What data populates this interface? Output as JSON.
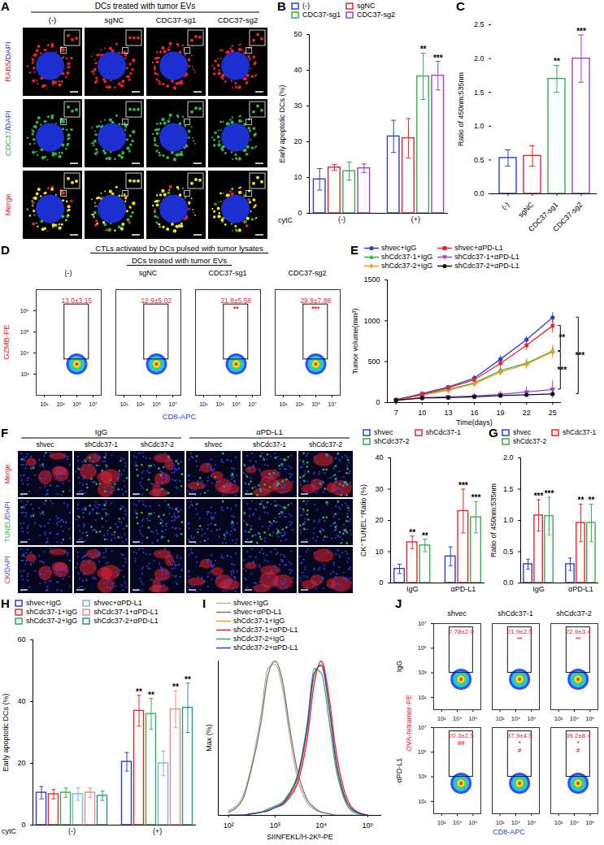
{
  "chart_data": [
    {
      "panel": "B",
      "type": "bar",
      "ylabel": "Early apoptotic DCs (%)",
      "xlabel": "cytC",
      "categories": [
        "(-)",
        "(+)"
      ],
      "ylim": [
        0,
        50
      ],
      "yticks": [
        0,
        10,
        20,
        30,
        40,
        50
      ],
      "legend": "top",
      "series": [
        {
          "name": "(-)",
          "color": "#2b3fd6",
          "values": [
            9.5,
            21.5
          ],
          "errors": [
            3,
            4.5
          ],
          "annotations": [
            null,
            null
          ]
        },
        {
          "name": "sgNC",
          "color": "#e8242b",
          "values": [
            12.8,
            21
          ],
          "errors": [
            0.8,
            5.5
          ],
          "annotations": [
            null,
            null
          ]
        },
        {
          "name": "CDC37-sg1",
          "color": "#2fb34a",
          "values": [
            11.8,
            38.3
          ],
          "errors": [
            2.5,
            6.5
          ],
          "annotations": [
            null,
            "**"
          ]
        },
        {
          "name": "CDC37-sg2",
          "color": "#9b3fd6",
          "values": [
            12.6,
            38.5
          ],
          "errors": [
            1.2,
            4
          ],
          "annotations": [
            null,
            "***"
          ]
        }
      ]
    },
    {
      "panel": "C",
      "type": "bar",
      "ylabel": "Ratio of 450nm:535nm",
      "categories": [
        "(-)",
        "sgNC",
        "CDC37-sg1",
        "CDC37-sg2"
      ],
      "values": [
        0.53,
        0.56,
        1.7,
        2.0
      ],
      "errors": [
        0.12,
        0.15,
        0.2,
        0.35
      ],
      "colors": [
        "#2b3fd6",
        "#e8242b",
        "#2fb34a",
        "#9b3fd6"
      ],
      "annotations": [
        null,
        null,
        "**",
        "***"
      ],
      "ylim": [
        0,
        2.5
      ],
      "yticks": [
        {
          "value": 0,
          "label": "0.0"
        },
        0.5,
        {
          "value": 1,
          "label": "1.0"
        },
        1.5,
        {
          "value": 2,
          "label": "2.0"
        },
        2.5
      ]
    },
    {
      "panel": "D",
      "type": "flow",
      "title": "CTLs activated by DCs pulsed with tumor lysates",
      "subtitle": "DCs treated with tumor EVs",
      "xlabel": "CD8-APC",
      "ylabel": "GZMB-PE",
      "log": true,
      "xlim": [
        1,
        100000000
      ],
      "xticks": [
        {
          "value": 10,
          "label": "10¹"
        },
        {
          "value": 1000,
          "label": "10³"
        },
        {
          "value": 100000,
          "label": "10⁵"
        },
        {
          "value": 10000000,
          "label": "10⁷"
        }
      ],
      "ylim": [
        100,
        10000000
      ],
      "yticks": [
        {
          "value": 1000,
          "label": "10³"
        },
        {
          "value": 10000,
          "label": "10⁴"
        },
        {
          "value": 100000,
          "label": "10⁵"
        },
        {
          "value": 1000000,
          "label": "10⁶"
        }
      ],
      "gate": {
        "x": [
          3000,
          3000000
        ],
        "y": [
          5000,
          2000000
        ]
      },
      "cluster": {
        "x": 100000,
        "y": 3000
      },
      "columns": [
        "(-)",
        "sgNC",
        "CDC37-sg1",
        "CDC37-sg2"
      ],
      "cells": [
        [
          {
            "label": "13.0±3.15",
            "annotations": []
          },
          {
            "label": "12.9±5.02",
            "annotations": []
          },
          {
            "label": "21.8±5.58",
            "annotations": [
              "**"
            ]
          },
          {
            "label": "29.9±7.88",
            "annotations": [
              "***"
            ]
          }
        ]
      ]
    },
    {
      "panel": "E",
      "type": "line",
      "xlabel": "Time(days)",
      "ylabel": "Tumor volume(mm³)",
      "x": [
        7,
        10,
        13,
        16,
        19,
        22,
        25
      ],
      "xlim": [
        6,
        26
      ],
      "xticks": [
        7,
        10,
        13,
        16,
        19,
        22,
        25
      ],
      "ylim": [
        0,
        1500
      ],
      "yticks": [
        0,
        500,
        1000,
        1500
      ],
      "legend": "top",
      "series": [
        {
          "name": "shvec+IgG",
          "color": "#2b3fd6",
          "marker": "circle",
          "values": [
            35,
            110,
            190,
            300,
            530,
            770,
            1040
          ],
          "errors": [
            10,
            15,
            20,
            30,
            40,
            40,
            60
          ]
        },
        {
          "name": "shCdc37-1+IgG",
          "color": "#2fb34a",
          "marker": "triangle",
          "values": [
            30,
            95,
            160,
            240,
            390,
            480,
            630
          ],
          "errors": [
            10,
            15,
            20,
            30,
            40,
            50,
            60
          ]
        },
        {
          "name": "shCdc37-2+IgG",
          "color": "#f59a23",
          "marker": "diamond",
          "values": [
            30,
            90,
            150,
            230,
            370,
            470,
            620
          ],
          "errors": [
            10,
            15,
            20,
            30,
            40,
            60,
            80
          ]
        },
        {
          "name": "shvec+αPD-L1",
          "color": "#e8242b",
          "marker": "square",
          "values": [
            35,
            100,
            180,
            280,
            480,
            700,
            940
          ],
          "errors": [
            10,
            15,
            20,
            30,
            50,
            60,
            90
          ]
        },
        {
          "name": "shCdc37-1+αPD-L1",
          "color": "#9b3fd6",
          "marker": "triangle-down",
          "values": [
            30,
            60,
            70,
            80,
            100,
            130,
            160
          ],
          "errors": [
            10,
            15,
            20,
            30,
            40,
            60,
            110
          ]
        },
        {
          "name": "shCdc37-2+αPD-L1",
          "color": "#111111",
          "marker": "circle",
          "values": [
            30,
            55,
            60,
            70,
            85,
            95,
            105
          ],
          "errors": [
            10,
            10,
            15,
            15,
            20,
            25,
            30
          ]
        }
      ],
      "brackets": [
        {
          "from": "shvec+αPD-L1",
          "to": "shCdc37-1+IgG",
          "label": "**"
        },
        {
          "from": "shCdc37-2+IgG",
          "to": "shCdc37-1+αPD-L1",
          "label": "***"
        },
        {
          "from": "shvec+IgG",
          "to": "shCdc37-2+αPD-L1",
          "label": "***"
        }
      ]
    },
    {
      "panel": "F",
      "type": "bar",
      "ylabel": "CK⁺TUNEL⁺Ratio (%)",
      "categories": [
        "IgG",
        "αPD-L1"
      ],
      "ylim": [
        0,
        40
      ],
      "yticks": [
        0,
        10,
        20,
        30,
        40
      ],
      "legend": "top",
      "series": [
        {
          "name": "shvec",
          "color": "#2b3fd6",
          "values": [
            4.5,
            8.5
          ],
          "errors": [
            1.5,
            3
          ],
          "annotations": [
            null,
            null
          ]
        },
        {
          "name": "shCdc37-1",
          "color": "#e8242b",
          "values": [
            13,
            23
          ],
          "errors": [
            2,
            7
          ],
          "annotations": [
            "**",
            "***"
          ]
        },
        {
          "name": "shCdc37-2",
          "color": "#2fb34a",
          "values": [
            12,
            21
          ],
          "errors": [
            2,
            5
          ],
          "annotations": [
            "**",
            "***"
          ]
        }
      ]
    },
    {
      "panel": "G",
      "type": "bar",
      "ylabel": "Ratio of 450nm:535nm",
      "categories": [
        "IgG",
        "αPD-L1"
      ],
      "ylim": [
        0,
        2
      ],
      "yticks": [
        {
          "value": 0,
          "label": "0.0"
        },
        0.5,
        {
          "value": 1,
          "label": "1.0"
        },
        1.5,
        {
          "value": 2,
          "label": "2.0"
        }
      ],
      "legend": "top",
      "series": [
        {
          "name": "shvec",
          "color": "#2b3fd6",
          "values": [
            0.3,
            0.3
          ],
          "errors": [
            0.08,
            0.1
          ],
          "annotations": [
            null,
            null
          ]
        },
        {
          "name": "shCdc37-1",
          "color": "#e8242b",
          "values": [
            1.08,
            0.96
          ],
          "errors": [
            0.25,
            0.3
          ],
          "annotations": [
            "***",
            "**"
          ]
        },
        {
          "name": "shCdc37-2",
          "color": "#2fb34a",
          "values": [
            1.07,
            0.96
          ],
          "errors": [
            0.3,
            0.3
          ],
          "annotations": [
            "***",
            "**"
          ]
        }
      ]
    },
    {
      "panel": "H",
      "type": "bar",
      "ylabel": "Early apoptotic DCs (%)",
      "xlabel": "cytC",
      "categories": [
        "(-)",
        "(+)"
      ],
      "ylim": [
        0,
        60
      ],
      "yticks": [
        0,
        20,
        40,
        60
      ],
      "legend": "top",
      "series": [
        {
          "name": "shvec+IgG",
          "color": "#2b3fd6",
          "values": [
            10.5,
            20.5
          ],
          "errors": [
            2,
            3
          ],
          "annotations": [
            null,
            null
          ]
        },
        {
          "name": "shCdc37-1+IgG",
          "color": "#e8242b",
          "values": [
            10,
            37
          ],
          "errors": [
            1.5,
            5
          ],
          "annotations": [
            null,
            "**"
          ]
        },
        {
          "name": "shCdc37-2+IgG",
          "color": "#2fb34a",
          "values": [
            10.5,
            36
          ],
          "errors": [
            1.5,
            5
          ],
          "annotations": [
            null,
            "**"
          ]
        },
        {
          "name": "shvec+αPD-L1",
          "color": "#7fb0e8",
          "values": [
            10,
            20
          ],
          "errors": [
            2,
            4
          ],
          "annotations": [
            null,
            null
          ]
        },
        {
          "name": "shCdc37-1+αPD-L1",
          "color": "#f08a7e",
          "values": [
            10.5,
            37.5
          ],
          "errors": [
            1.5,
            6
          ],
          "annotations": [
            null,
            "**"
          ]
        },
        {
          "name": "shCdc37-2+αPD-L1",
          "color": "#1f9a8a",
          "values": [
            9.5,
            38
          ],
          "errors": [
            1.5,
            8
          ],
          "annotations": [
            null,
            "**"
          ]
        }
      ]
    },
    {
      "panel": "I",
      "type": "line",
      "xlabel": "SIINFEKL/H-2Kᵇ-PE",
      "ylabel": "Max (%)",
      "log": "x",
      "tick_labels": "x",
      "legend": "top",
      "x": [
        100,
        200,
        300,
        500,
        700,
        1000,
        1500,
        2000,
        3000,
        5000,
        7000,
        10000,
        15000,
        20000,
        30000,
        50000,
        100000
      ],
      "xlim": [
        60,
        200000
      ],
      "xticks": [
        {
          "value": 100,
          "label": "10²"
        },
        {
          "value": 1000,
          "label": "10³"
        },
        {
          "value": 10000,
          "label": "10⁴"
        },
        {
          "value": 100000,
          "label": "10⁵"
        }
      ],
      "ylim": [
        0,
        100
      ],
      "series": [
        {
          "name": "shvec+IgG",
          "color": "#b0b0b0",
          "values": [
            3,
            12,
            30,
            65,
            95,
            98,
            80,
            55,
            25,
            8,
            4,
            2,
            1,
            0,
            0,
            0,
            0
          ]
        },
        {
          "name": "shvec+αPD-L1",
          "color": "#8a7060",
          "values": [
            2,
            10,
            28,
            60,
            90,
            100,
            85,
            60,
            30,
            10,
            5,
            2,
            1,
            0,
            0,
            0,
            0
          ]
        },
        {
          "name": "shCdc37-1+IgG",
          "color": "#f59a23",
          "values": [
            0,
            0,
            1,
            2,
            3,
            5,
            8,
            12,
            22,
            55,
            90,
            98,
            70,
            40,
            15,
            3,
            0
          ]
        },
        {
          "name": "shCdc37-1+αPD-L1",
          "color": "#e8242b",
          "values": [
            0,
            0,
            1,
            2,
            3,
            5,
            7,
            11,
            20,
            50,
            85,
            100,
            75,
            45,
            18,
            4,
            0
          ]
        },
        {
          "name": "shCdc37-2+IgG",
          "color": "#2fb34a",
          "values": [
            0,
            0,
            1,
            2,
            4,
            6,
            9,
            14,
            25,
            60,
            95,
            92,
            60,
            33,
            12,
            2,
            0
          ]
        },
        {
          "name": "shCdc37-2+αPD-L1",
          "color": "#2b3fd6",
          "values": [
            0,
            0,
            1,
            2,
            3,
            5,
            8,
            13,
            24,
            58,
            92,
            97,
            68,
            38,
            14,
            3,
            0
          ]
        }
      ]
    },
    {
      "panel": "J",
      "type": "flow",
      "xlabel": "CD8-APC",
      "ylabel": "OVA-tetramer-PE",
      "log": true,
      "xlim": [
        10,
        10000000
      ],
      "xticks": [
        {
          "value": 100,
          "label": "10²"
        },
        {
          "value": 10000,
          "label": "10⁴"
        },
        {
          "value": 1000000,
          "label": "10⁶"
        }
      ],
      "ylim": [
        1,
        10000000
      ],
      "yticks": [
        {
          "value": 10,
          "label": "10¹"
        },
        {
          "value": 1000,
          "label": "10³"
        },
        {
          "value": 100000,
          "label": "10⁵"
        },
        {
          "value": 10000000,
          "label": "10⁷"
        }
      ],
      "gate": {
        "x": [
          1000,
          1000000
        ],
        "y": [
          1000,
          5000000
        ]
      },
      "cluster": {
        "x": 30000,
        "y": 300
      },
      "rows": [
        "IgG",
        "αPD-L1"
      ],
      "columns": [
        "shvec",
        "shCdc37-1",
        "shCdc37-2"
      ],
      "cells": [
        [
          {
            "label": "7.78±2.0",
            "annotations": []
          },
          {
            "label": "21.9±2.5",
            "annotations": [
              "**"
            ]
          },
          {
            "label": "22.9±3.4",
            "annotations": [
              "**"
            ]
          }
        ],
        [
          {
            "label": "20.3±2.5",
            "annotations": [
              "##"
            ]
          },
          {
            "label": "37.9±4.5",
            "annotations": [
              "*",
              "#"
            ]
          },
          {
            "label": "39.2±8.4",
            "annotations": [
              "*",
              "#"
            ]
          }
        ]
      ]
    }
  ],
  "images": [
    {
      "panel": "A",
      "title": "DCs treated with tumor EVs",
      "columns": [
        "(-)",
        "sgNC",
        "CDC37-sg1",
        "CDC37-sg2"
      ],
      "rows": [
        {
          "label": "RAB5/DAPI",
          "colors": [
            "#e8242b",
            "#2b3fd6"
          ]
        },
        {
          "label": "CDC37/DAPI",
          "colors": [
            "#2fb34a",
            "#2b3fd6"
          ]
        },
        {
          "label": "Merge",
          "colors": [
            "#e8242b"
          ]
        }
      ]
    },
    {
      "panel": "F",
      "groups": [
        {
          "label": "IgG",
          "columns": [
            "shvec",
            "shCdc37-1",
            "shCdc37-2"
          ]
        },
        {
          "label": "αPD-L1",
          "columns": [
            "shvec",
            "shCdc37-1",
            "shCdc37-2"
          ]
        }
      ],
      "rows": [
        {
          "label": "Merge",
          "colors": [
            "#e8242b"
          ]
        },
        {
          "label": "TUNEL/DAPI",
          "colors": [
            "#2fb34a",
            "#2b3fd6"
          ]
        },
        {
          "label": "CK/DAPI",
          "colors": [
            "#e8242b",
            "#2b3fd6"
          ]
        }
      ]
    }
  ]
}
